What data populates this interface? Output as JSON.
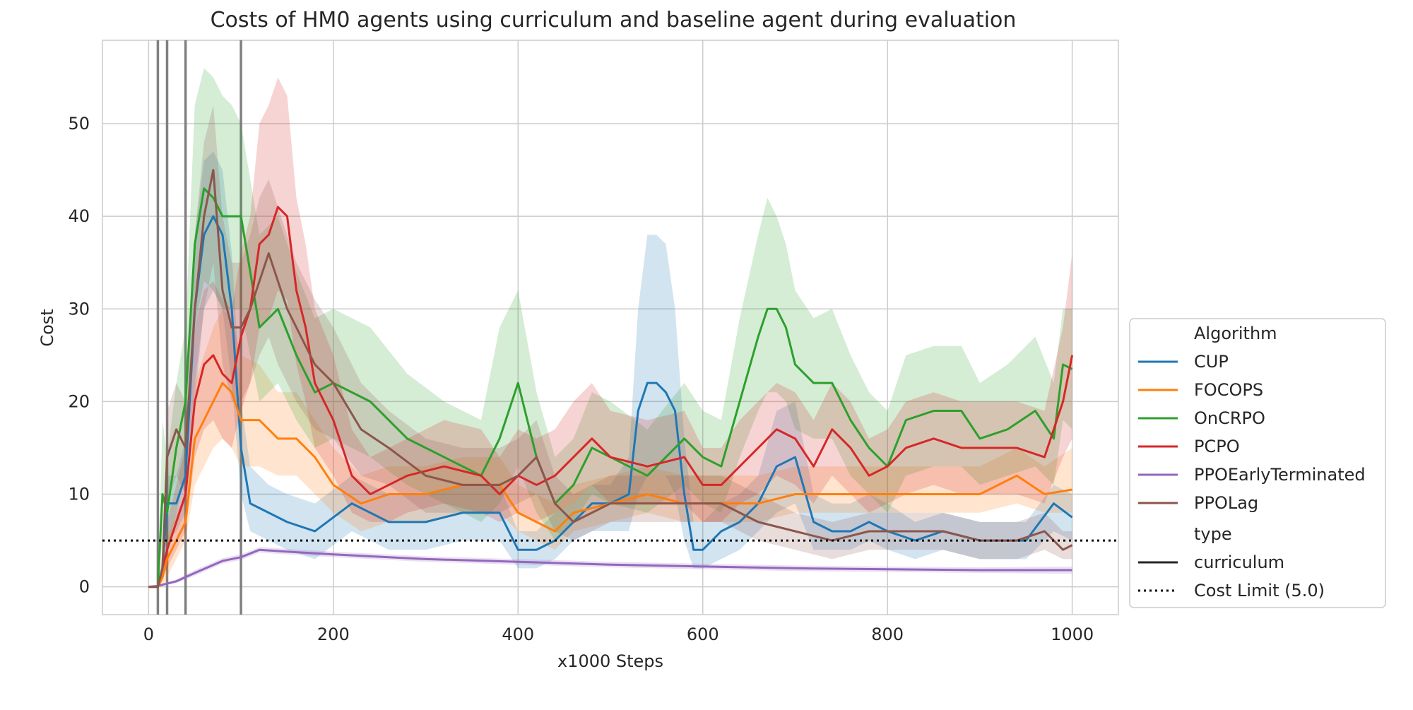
{
  "chart_data": {
    "type": "line",
    "title": "Costs of HM0 agents using curriculum and baseline agent during evaluation",
    "xlabel": "x1000 Steps",
    "ylabel": "Cost",
    "xlim": [
      -50,
      1050
    ],
    "ylim": [
      -3,
      59
    ],
    "xticks": [
      0,
      200,
      400,
      600,
      800,
      1000
    ],
    "yticks": [
      0,
      10,
      20,
      30,
      40,
      50
    ],
    "grid": true,
    "legend_position": "right-bottom",
    "vertical_lines": [
      10,
      20,
      40,
      100
    ],
    "cost_limit": {
      "label": "Cost Limit (5.0)",
      "value": 5.0,
      "style": "dotted",
      "color": "#000000"
    },
    "legend": {
      "algorithm_title": "Algorithm",
      "type_title": "type",
      "type_entries": [
        "curriculum",
        "Cost Limit (5.0)"
      ]
    },
    "series": [
      {
        "name": "CUP",
        "color": "#1f77b4",
        "x": [
          0,
          10,
          15,
          20,
          30,
          40,
          50,
          60,
          70,
          80,
          90,
          100,
          110,
          130,
          150,
          180,
          220,
          260,
          300,
          340,
          380,
          400,
          420,
          440,
          460,
          480,
          500,
          520,
          530,
          540,
          550,
          560,
          570,
          580,
          590,
          600,
          620,
          640,
          660,
          680,
          700,
          720,
          740,
          760,
          780,
          800,
          830,
          860,
          900,
          950,
          980,
          1000
        ],
        "y": [
          0,
          0,
          2,
          9,
          9,
          12,
          30,
          38,
          40,
          38,
          30,
          15,
          9,
          8,
          7,
          6,
          9,
          7,
          7,
          8,
          8,
          4,
          4,
          5,
          7,
          9,
          9,
          10,
          19,
          22,
          22,
          21,
          19,
          10,
          4,
          4,
          6,
          7,
          9,
          13,
          14,
          7,
          6,
          6,
          7,
          6,
          5,
          6,
          5,
          5,
          9,
          7.5
        ],
        "lower": [
          0,
          0,
          1,
          5,
          6,
          8,
          20,
          30,
          32,
          30,
          22,
          10,
          6,
          5,
          4,
          3,
          6,
          4,
          4,
          5,
          5,
          2,
          2,
          3,
          5,
          6,
          6,
          6,
          10,
          12,
          12,
          12,
          10,
          5,
          2,
          2,
          3,
          4,
          6,
          8,
          9,
          4,
          4,
          4,
          5,
          4,
          3,
          4,
          3,
          3,
          6,
          5
        ],
        "upper": [
          0,
          0,
          3,
          12,
          12,
          16,
          38,
          46,
          47,
          45,
          36,
          20,
          13,
          11,
          10,
          9,
          12,
          10,
          10,
          11,
          11,
          6,
          6,
          8,
          9,
          11,
          11,
          14,
          30,
          38,
          38,
          37,
          30,
          16,
          7,
          7,
          9,
          10,
          12,
          19,
          20,
          10,
          9,
          9,
          10,
          9,
          7,
          8,
          7,
          7,
          11,
          10
        ]
      },
      {
        "name": "FOCOPS",
        "color": "#ff7f0e",
        "x": [
          0,
          10,
          15,
          20,
          30,
          40,
          50,
          60,
          70,
          80,
          90,
          100,
          120,
          140,
          160,
          180,
          200,
          230,
          260,
          300,
          340,
          380,
          400,
          420,
          440,
          460,
          500,
          540,
          580,
          620,
          660,
          700,
          740,
          780,
          820,
          860,
          900,
          940,
          970,
          1000
        ],
        "y": [
          0,
          0,
          1,
          3,
          5,
          7,
          16,
          18,
          20,
          22,
          21,
          18,
          18,
          16,
          16,
          14,
          11,
          9,
          10,
          10,
          11,
          11,
          8,
          7,
          6,
          8,
          9,
          10,
          9,
          9,
          9,
          10,
          10,
          10,
          10,
          10,
          10,
          12,
          10,
          10.5
        ],
        "lower": [
          0,
          0,
          0,
          1,
          3,
          5,
          11,
          13,
          15,
          16,
          15,
          13,
          13,
          12,
          12,
          10,
          8,
          6,
          7,
          7,
          8,
          8,
          6,
          5,
          4,
          6,
          7,
          8,
          7,
          7,
          7,
          8,
          8,
          8,
          8,
          8,
          8,
          9,
          8,
          8
        ],
        "upper": [
          0,
          0,
          2,
          5,
          8,
          10,
          22,
          25,
          28,
          30,
          29,
          25,
          24,
          21,
          21,
          18,
          15,
          12,
          13,
          13,
          14,
          14,
          11,
          10,
          9,
          11,
          12,
          13,
          12,
          12,
          12,
          13,
          13,
          13,
          13,
          13,
          13,
          15,
          13,
          15
        ]
      },
      {
        "name": "OnCRPO",
        "color": "#2ca02c",
        "x": [
          0,
          10,
          15,
          20,
          30,
          40,
          50,
          60,
          70,
          80,
          90,
          100,
          120,
          140,
          160,
          180,
          200,
          240,
          280,
          320,
          360,
          380,
          400,
          420,
          440,
          460,
          480,
          500,
          540,
          580,
          600,
          620,
          640,
          660,
          670,
          680,
          690,
          700,
          720,
          740,
          760,
          780,
          800,
          820,
          850,
          880,
          900,
          930,
          960,
          980,
          990,
          1000
        ],
        "y": [
          0,
          0,
          10,
          8,
          15,
          20,
          37,
          43,
          42,
          40,
          40,
          40,
          28,
          30,
          25,
          21,
          22,
          20,
          16,
          14,
          12,
          16,
          22,
          14,
          9,
          11,
          15,
          14,
          12,
          16,
          14,
          13,
          20,
          27,
          30,
          30,
          28,
          24,
          22,
          22,
          18,
          15,
          13,
          18,
          19,
          19,
          16,
          17,
          19,
          16,
          24,
          23.5
        ],
        "lower": [
          0,
          0,
          5,
          4,
          8,
          12,
          28,
          33,
          32,
          30,
          30,
          30,
          20,
          22,
          18,
          15,
          16,
          14,
          11,
          9,
          7,
          9,
          13,
          8,
          5,
          7,
          10,
          9,
          8,
          11,
          9,
          8,
          14,
          19,
          21,
          21,
          20,
          17,
          16,
          16,
          12,
          10,
          8,
          12,
          13,
          13,
          11,
          12,
          13,
          11,
          18,
          17
        ],
        "upper": [
          0,
          0,
          18,
          14,
          22,
          28,
          52,
          56,
          55,
          53,
          52,
          50,
          38,
          40,
          34,
          29,
          30,
          28,
          23,
          20,
          18,
          28,
          32,
          21,
          14,
          16,
          21,
          20,
          17,
          22,
          19,
          18,
          29,
          38,
          42,
          40,
          37,
          32,
          29,
          30,
          25,
          21,
          19,
          25,
          26,
          26,
          22,
          24,
          27,
          22,
          30,
          30
        ]
      },
      {
        "name": "PCPO",
        "color": "#d62728",
        "x": [
          0,
          10,
          15,
          20,
          30,
          40,
          50,
          60,
          70,
          80,
          90,
          100,
          110,
          120,
          130,
          140,
          150,
          160,
          170,
          180,
          200,
          220,
          240,
          260,
          280,
          320,
          360,
          380,
          400,
          420,
          440,
          460,
          480,
          500,
          540,
          580,
          600,
          620,
          640,
          660,
          680,
          700,
          720,
          740,
          760,
          780,
          800,
          820,
          850,
          880,
          900,
          940,
          970,
          990,
          1000
        ],
        "y": [
          0,
          0,
          2,
          4,
          7,
          10,
          20,
          24,
          25,
          23,
          22,
          27,
          30,
          37,
          38,
          41,
          40,
          32,
          28,
          22,
          18,
          12,
          10,
          11,
          12,
          13,
          12,
          10,
          12,
          11,
          12,
          14,
          16,
          14,
          13,
          14,
          11,
          11,
          13,
          15,
          17,
          16,
          13,
          17,
          15,
          12,
          13,
          15,
          16,
          15,
          15,
          15,
          14,
          20,
          25
        ],
        "lower": [
          0,
          0,
          1,
          2,
          4,
          6,
          14,
          17,
          18,
          16,
          15,
          19,
          22,
          28,
          29,
          32,
          31,
          24,
          20,
          15,
          12,
          8,
          7,
          7,
          8,
          9,
          8,
          7,
          8,
          7,
          8,
          9,
          11,
          9,
          9,
          9,
          7,
          7,
          9,
          10,
          12,
          11,
          9,
          12,
          10,
          8,
          9,
          10,
          11,
          10,
          10,
          10,
          9,
          14,
          16
        ],
        "upper": [
          0,
          0,
          4,
          7,
          11,
          15,
          28,
          32,
          33,
          31,
          30,
          36,
          40,
          50,
          52,
          55,
          53,
          42,
          37,
          30,
          25,
          17,
          14,
          15,
          16,
          18,
          17,
          14,
          17,
          16,
          17,
          20,
          22,
          19,
          18,
          19,
          15,
          15,
          18,
          20,
          22,
          21,
          18,
          22,
          20,
          16,
          17,
          20,
          21,
          20,
          20,
          20,
          19,
          28,
          36
        ]
      },
      {
        "name": "PPOEarlyTerminated",
        "color": "#9467bd",
        "x": [
          0,
          10,
          30,
          50,
          80,
          100,
          120,
          150,
          200,
          300,
          400,
          500,
          600,
          700,
          800,
          900,
          1000
        ],
        "y": [
          0,
          0.1,
          0.6,
          1.5,
          2.8,
          3.2,
          4.0,
          3.8,
          3.5,
          3.0,
          2.7,
          2.4,
          2.2,
          2.0,
          1.9,
          1.8,
          1.8
        ],
        "lower": [
          0,
          0,
          0.4,
          1.2,
          2.5,
          2.9,
          3.7,
          3.5,
          3.2,
          2.7,
          2.4,
          2.1,
          1.9,
          1.7,
          1.6,
          1.5,
          1.4
        ],
        "upper": [
          0,
          0.2,
          0.8,
          1.8,
          3.1,
          3.5,
          4.3,
          4.1,
          3.8,
          3.3,
          3.0,
          2.7,
          2.5,
          2.3,
          2.2,
          2.1,
          2.2
        ]
      },
      {
        "name": "PPOLag",
        "color": "#8c564b",
        "x": [
          0,
          10,
          15,
          20,
          30,
          40,
          50,
          60,
          70,
          80,
          90,
          100,
          110,
          120,
          130,
          140,
          150,
          160,
          180,
          200,
          230,
          260,
          300,
          340,
          380,
          400,
          420,
          440,
          460,
          480,
          500,
          540,
          580,
          620,
          660,
          700,
          740,
          780,
          820,
          860,
          900,
          940,
          970,
          990,
          1000
        ],
        "y": [
          0,
          0,
          2,
          14,
          17,
          15,
          30,
          40,
          45,
          32,
          28,
          28,
          30,
          33,
          36,
          33,
          30,
          28,
          24,
          22,
          17,
          15,
          12,
          11,
          11,
          12,
          14,
          9,
          7,
          8,
          9,
          9,
          9,
          9,
          7,
          6,
          5,
          6,
          6,
          6,
          5,
          5,
          6,
          4,
          4.5
        ],
        "lower": [
          0,
          0,
          1,
          9,
          12,
          10,
          22,
          30,
          35,
          24,
          20,
          20,
          22,
          25,
          27,
          24,
          22,
          20,
          17,
          16,
          12,
          11,
          8,
          8,
          8,
          9,
          10,
          6,
          5,
          6,
          7,
          7,
          7,
          7,
          5,
          4,
          3,
          4,
          4,
          4,
          3,
          3,
          4,
          3,
          3
        ],
        "upper": [
          0,
          0,
          3,
          19,
          22,
          20,
          38,
          48,
          52,
          40,
          35,
          35,
          38,
          42,
          44,
          41,
          38,
          35,
          31,
          28,
          22,
          19,
          16,
          15,
          15,
          16,
          18,
          12,
          10,
          11,
          12,
          12,
          12,
          12,
          10,
          8,
          7,
          8,
          8,
          8,
          7,
          7,
          8,
          6,
          6
        ]
      }
    ]
  }
}
